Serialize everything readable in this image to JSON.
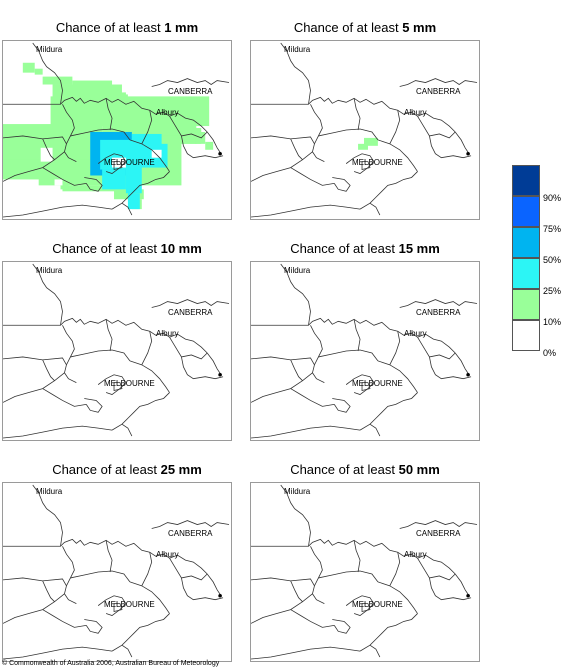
{
  "panels": [
    {
      "prefix": "Chance of at least ",
      "amount": "1 mm"
    },
    {
      "prefix": "Chance of at least ",
      "amount": "5 mm"
    },
    {
      "prefix": "Chance of at least ",
      "amount": "10 mm"
    },
    {
      "prefix": "Chance of at least ",
      "amount": "15 mm"
    },
    {
      "prefix": "Chance of at least ",
      "amount": "25 mm"
    },
    {
      "prefix": "Chance of at least ",
      "amount": "50 mm"
    }
  ],
  "places": {
    "mildura": "Mildura",
    "canberra": "CANBERRA",
    "albury": "Albury",
    "melbourne": "MELBOURNE"
  },
  "legend": [
    {
      "label": "90%",
      "color": "#003c96"
    },
    {
      "label": "75%",
      "color": "#0a64ff"
    },
    {
      "label": "50%",
      "color": "#00b4f0"
    },
    {
      "label": "25%",
      "color": "#2cf5f5"
    },
    {
      "label": "10%",
      "color": "#99ff99"
    },
    {
      "label": "0%",
      "color": "#ffffff"
    }
  ],
  "copyright": "© Commonwealth of Australia 2006, Australian Bureau of Meteorology"
}
